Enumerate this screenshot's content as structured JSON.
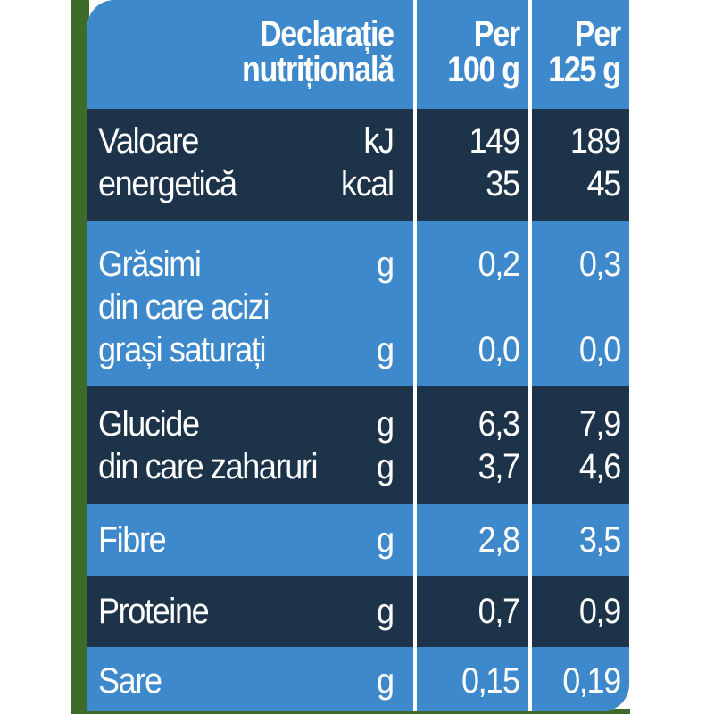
{
  "colors": {
    "light_row": "#3d89cc",
    "dark_row": "#1c3349",
    "background_strip": "#3f6b2a"
  },
  "header": {
    "title_line1": "Declarație",
    "title_line2": "nutrițională",
    "col2_line1": "Per",
    "col2_line2": "100 g",
    "col3_line1": "Per",
    "col3_line2": "125 g"
  },
  "rows": [
    {
      "lines": [
        {
          "label": "Valoare",
          "unit": "kJ",
          "v100": "149",
          "v125": "189"
        },
        {
          "label": "energetică",
          "unit": "kcal",
          "v100": "35",
          "v125": "45"
        }
      ]
    },
    {
      "lines": [
        {
          "label": "Grăsimi",
          "unit": "g",
          "v100": "0,2",
          "v125": "0,3"
        },
        {
          "label": "din care acizi",
          "unit": "",
          "v100": "",
          "v125": ""
        },
        {
          "label": "grași saturați",
          "unit": "g",
          "v100": "0,0",
          "v125": "0,0"
        }
      ]
    },
    {
      "lines": [
        {
          "label": "Glucide",
          "unit": "g",
          "v100": "6,3",
          "v125": "7,9"
        },
        {
          "label": "din care zaharuri",
          "unit": "g",
          "v100": "3,7",
          "v125": "4,6"
        }
      ]
    },
    {
      "lines": [
        {
          "label": "Fibre",
          "unit": "g",
          "v100": "2,8",
          "v125": "3,5"
        }
      ]
    },
    {
      "lines": [
        {
          "label": "Proteine",
          "unit": "g",
          "v100": "0,7",
          "v125": "0,9"
        }
      ]
    },
    {
      "lines": [
        {
          "label": "Sare",
          "unit": "g",
          "v100": "0,15",
          "v125": "0,19"
        }
      ]
    }
  ]
}
